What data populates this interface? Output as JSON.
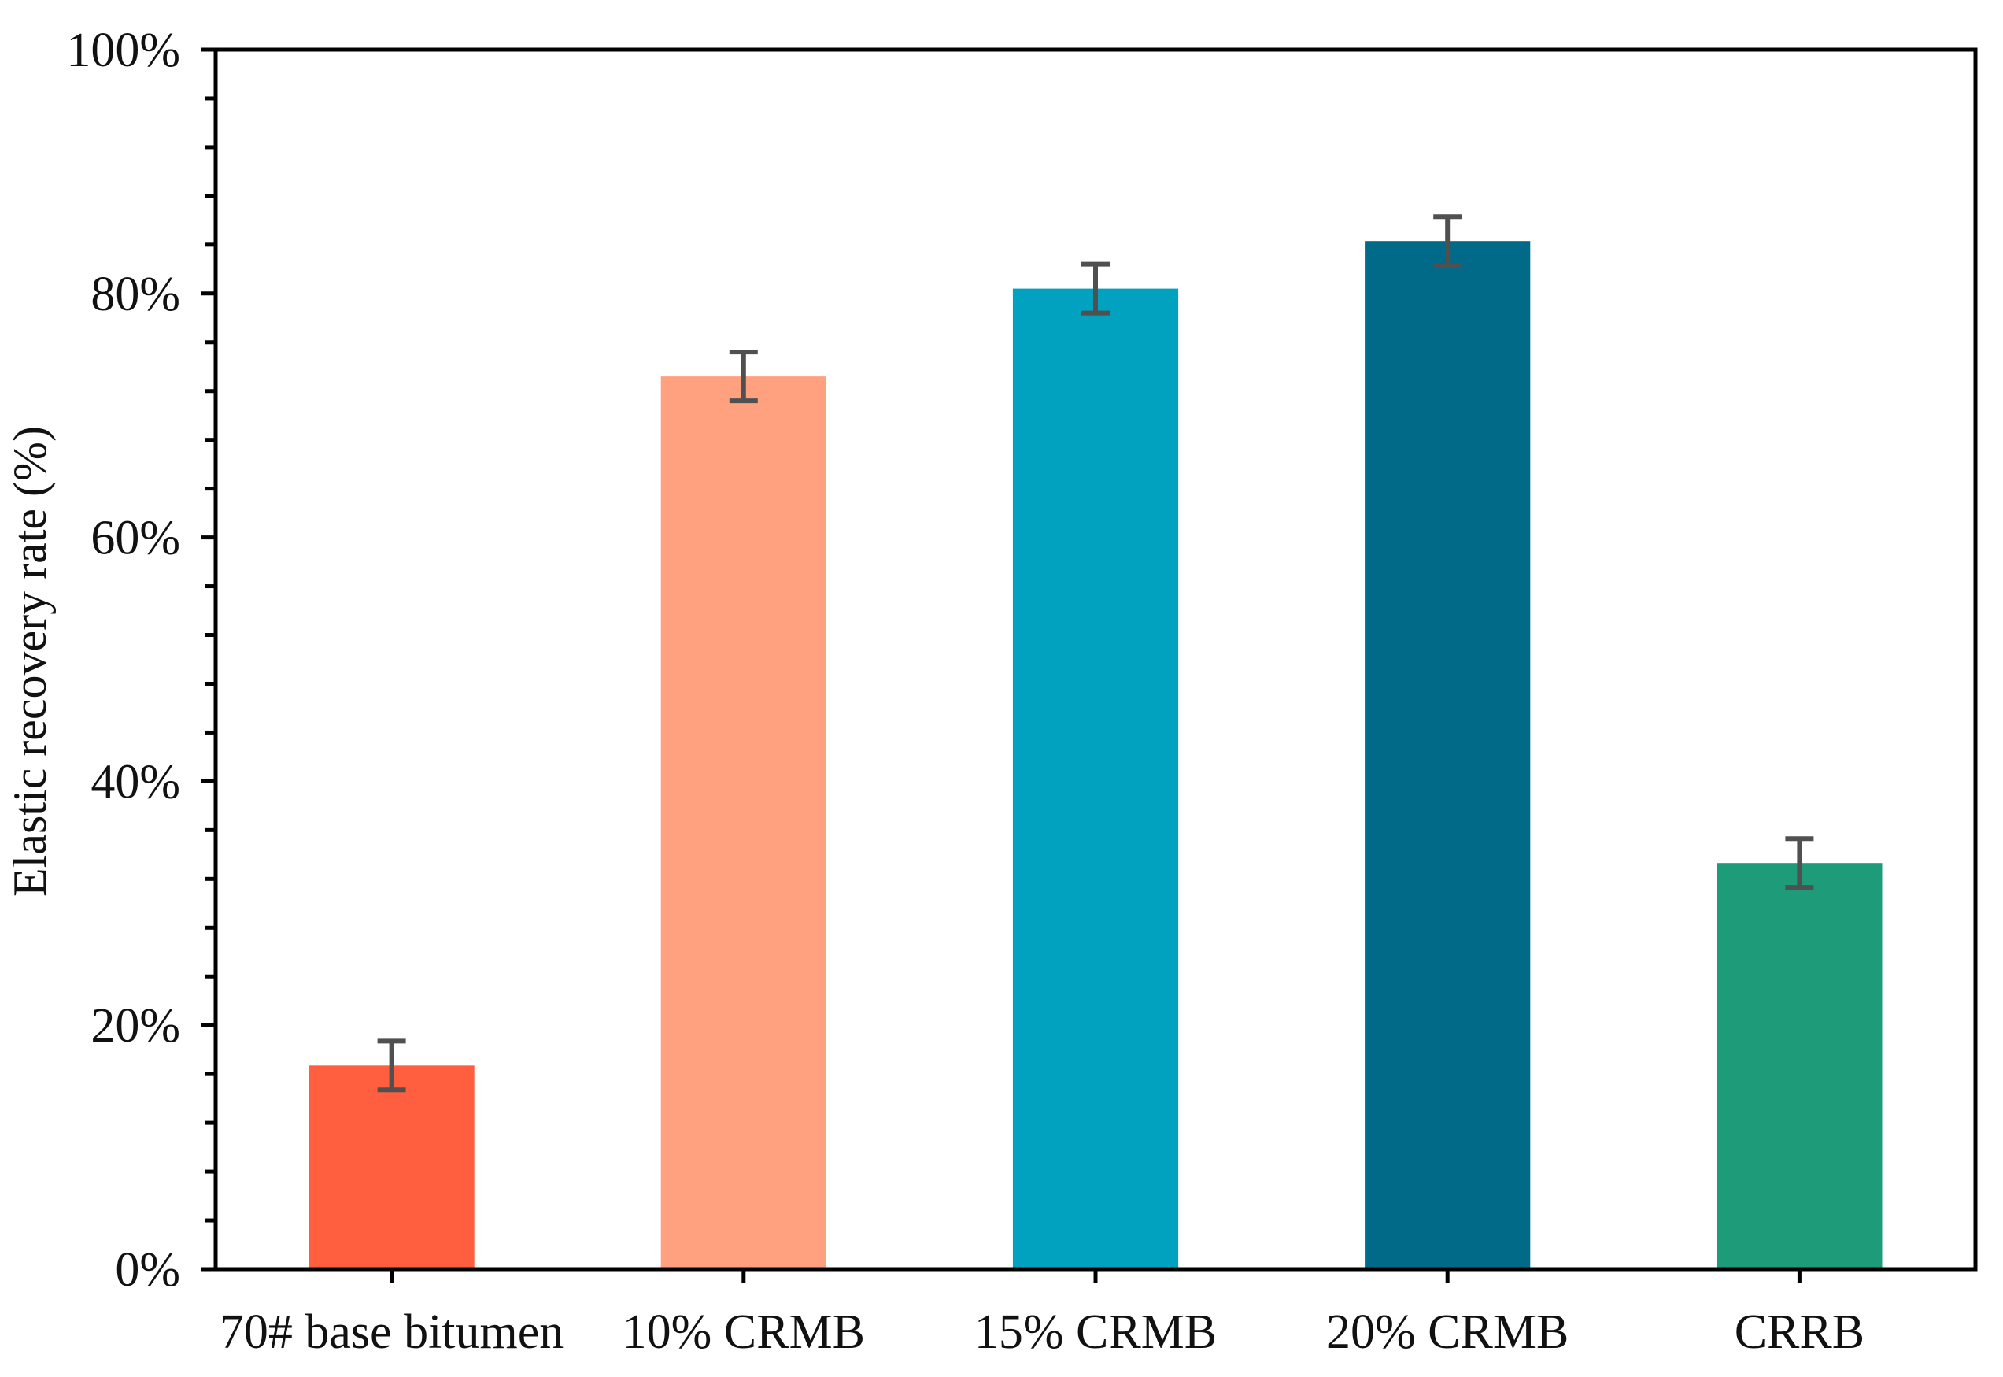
{
  "chart_data": {
    "type": "bar",
    "title": "",
    "xlabel": "",
    "ylabel": "Elastic recovery rate (%)",
    "ylim": [
      0,
      100
    ],
    "y_tick_values": [
      0,
      20,
      40,
      60,
      80,
      100
    ],
    "y_tick_labels": [
      "0%",
      "20%",
      "40%",
      "60%",
      "80%",
      "100%"
    ],
    "y_minor_step": 4,
    "categories": [
      "70# base bitumen",
      "10% CRMB",
      "15% CRMB",
      "20% CRMB",
      "CRRB"
    ],
    "values": [
      16.7,
      73.2,
      80.4,
      84.3,
      33.3
    ],
    "error": [
      2.0,
      2.0,
      2.0,
      2.0,
      2.0
    ],
    "colors": [
      "#FF5F3F",
      "#FFA07F",
      "#00A2BF",
      "#006A88",
      "#1E9C7A"
    ],
    "error_bar_color": "#505050",
    "grid": false,
    "legend": "none"
  }
}
